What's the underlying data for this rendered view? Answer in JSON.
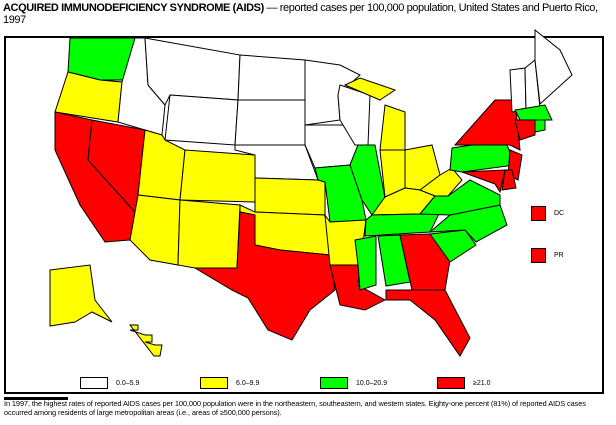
{
  "title": {
    "main": "ACQUIRED IMMUNODEFICIENCY SYNDROME (AIDS)",
    "rest": " — reported cases per 100,000 population, United States and Puerto Rico, 1997"
  },
  "legend": [
    {
      "label": "0.0–5.9",
      "color": "#ffffff"
    },
    {
      "label": "6.0–9.9",
      "color": "#ffff00"
    },
    {
      "label": "10.0–20.9",
      "color": "#00ff00"
    },
    {
      "label": "≥21.0",
      "color": "#ff0000"
    }
  ],
  "insets": [
    {
      "label": "DC",
      "category": 3
    },
    {
      "label": "PR",
      "category": 3
    }
  ],
  "state_categories": {
    "WA": 2,
    "OR": 1,
    "CA": 3,
    "NV": 3,
    "ID": 0,
    "MT": 0,
    "WY": 0,
    "UT": 1,
    "CO": 1,
    "AZ": 1,
    "NM": 1,
    "ND": 0,
    "SD": 0,
    "NE": 0,
    "KS": 1,
    "OK": 1,
    "TX": 3,
    "MN": 0,
    "IA": 0,
    "MO": 2,
    "AR": 1,
    "LA": 3,
    "WI": 0,
    "IL": 2,
    "MI": 1,
    "IN": 1,
    "OH": 1,
    "KY": 1,
    "TN": 2,
    "MS": 2,
    "AL": 2,
    "GA": 3,
    "FL": 3,
    "SC": 2,
    "NC": 2,
    "VA": 2,
    "WV": 1,
    "PA": 2,
    "NY": 3,
    "NJ": 3,
    "MD": 3,
    "DE": 3,
    "VT": 0,
    "NH": 0,
    "ME": 0,
    "MA": 2,
    "CT": 3,
    "RI": 2,
    "AK": 1,
    "HI": 1
  },
  "footnote": "In 1997, the highest rates of reported AIDS cases per 100,000 population were in the northeastern, southeastern, and western states. Eighty-one percent (81%) of reported AIDS cases occurred among residents of large metropolitan areas (i.e., areas of ≥500,000 persons)."
}
